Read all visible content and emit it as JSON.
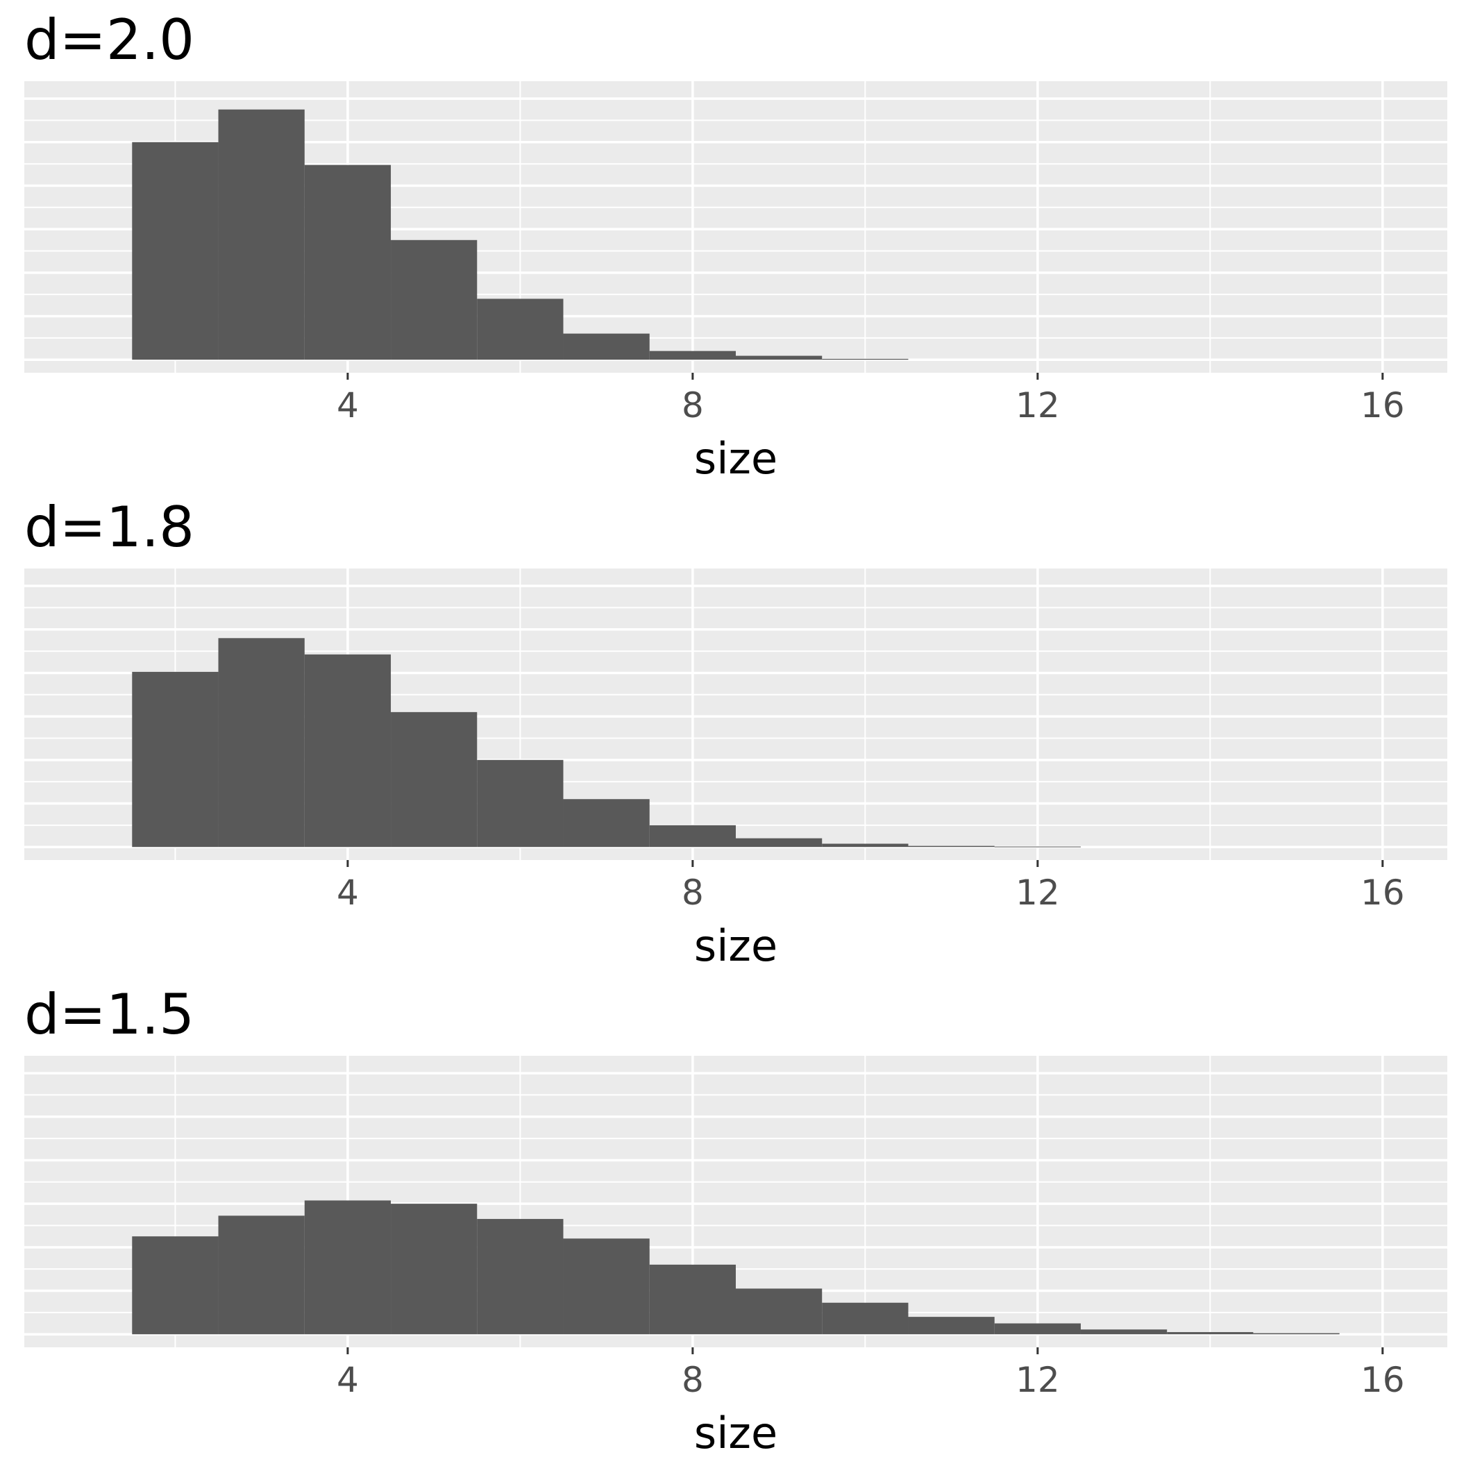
{
  "colors": {
    "panel_background": "#ebebeb",
    "grid": "#ffffff",
    "bar_fill": "#595959",
    "tick_text": "#4d4d4d",
    "title_text": "#000000"
  },
  "chart_data": [
    {
      "type": "bar",
      "title": "d=2.0",
      "xlabel": "size",
      "ylabel": "",
      "xlim": [
        0.25,
        16.75
      ],
      "xticks": [
        4,
        8,
        12,
        16
      ],
      "ylim": [
        -0.06,
        1.28
      ],
      "grid": true,
      "bin_width": 1,
      "categories": [
        2,
        3,
        4,
        5,
        6,
        7,
        8,
        9,
        10
      ],
      "values": [
        1.0,
        1.15,
        0.895,
        0.55,
        0.28,
        0.12,
        0.04,
        0.018,
        0.004
      ]
    },
    {
      "type": "bar",
      "title": "d=1.8",
      "xlabel": "size",
      "ylabel": "",
      "xlim": [
        0.25,
        16.75
      ],
      "xticks": [
        4,
        8,
        12,
        16
      ],
      "ylim": [
        -0.06,
        1.28
      ],
      "grid": true,
      "bin_width": 1,
      "categories": [
        2,
        3,
        4,
        5,
        6,
        7,
        8,
        9,
        10,
        11,
        12
      ],
      "values": [
        0.805,
        0.96,
        0.885,
        0.62,
        0.4,
        0.22,
        0.1,
        0.04,
        0.015,
        0.005,
        0.002
      ]
    },
    {
      "type": "bar",
      "title": "d=1.5",
      "xlabel": "size",
      "ylabel": "",
      "xlim": [
        0.25,
        16.75
      ],
      "xticks": [
        4,
        8,
        12,
        16
      ],
      "ylim": [
        -0.06,
        1.28
      ],
      "grid": true,
      "bin_width": 1,
      "categories": [
        2,
        3,
        4,
        5,
        6,
        7,
        8,
        9,
        10,
        11,
        12,
        13,
        14,
        15
      ],
      "values": [
        0.45,
        0.545,
        0.615,
        0.6,
        0.53,
        0.44,
        0.32,
        0.21,
        0.145,
        0.08,
        0.05,
        0.022,
        0.01,
        0.005
      ]
    }
  ]
}
